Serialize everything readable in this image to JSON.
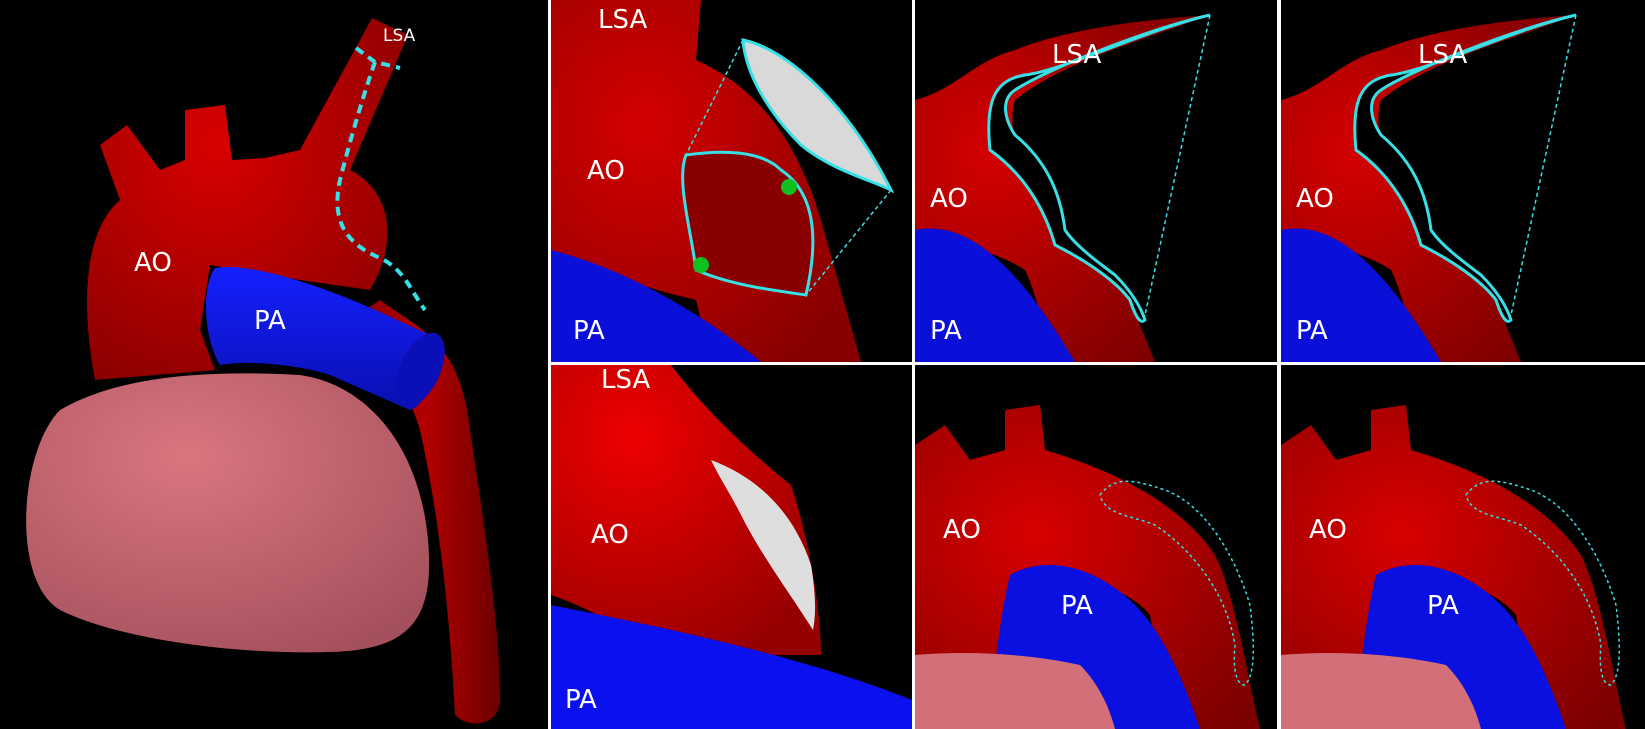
{
  "colors": {
    "background": "#000000",
    "aorta_red": "#c80000",
    "aorta_dark": "#7a0000",
    "pulmonary_blue": "#0a10d8",
    "heart_pink": "#d36f78",
    "cut_line_cyan": "#36e0e6",
    "patch_gray": "#d9d9d9",
    "marker_green": "#10c020"
  },
  "main_panel": {
    "labels": {
      "lsa": "LSA",
      "ao": "AO",
      "pa": "PA"
    }
  },
  "top_panels": [
    {
      "labels": {
        "lsa": "LSA",
        "ao": "AO",
        "pa": "PA"
      }
    },
    {
      "labels": {
        "lsa": "LSA",
        "ao": "AO",
        "pa": "PA"
      }
    },
    {
      "labels": {
        "lsa": "LSA",
        "ao": "AO",
        "pa": "PA"
      }
    }
  ],
  "bottom_panels": [
    {
      "labels": {
        "lsa": "LSA",
        "ao": "AO",
        "pa": "PA"
      }
    },
    {
      "labels": {
        "ao": "AO",
        "pa": "PA"
      }
    },
    {
      "labels": {
        "ao": "AO",
        "pa": "PA"
      }
    }
  ]
}
